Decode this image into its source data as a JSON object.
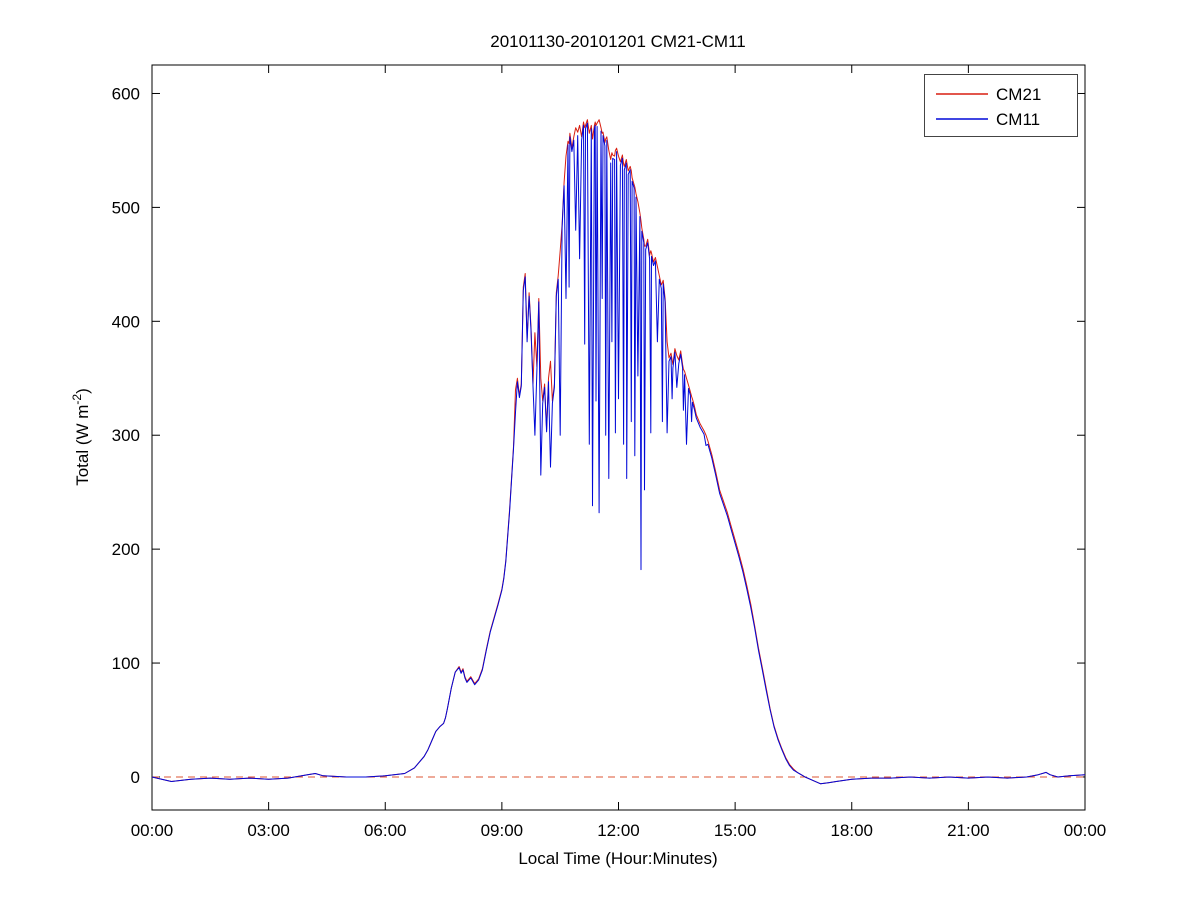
{
  "chart_data": {
    "type": "line",
    "title": "20101130-20101201 CM21-CM11",
    "xlabel": "Local Time (Hour:Minutes)",
    "ylabel": {
      "pre": "Total (W m",
      "sup": "-2",
      "post": ")"
    },
    "xlim": [
      0,
      24
    ],
    "ylim": [
      -29,
      625
    ],
    "grid": false,
    "x_ticks": [
      {
        "t": 0,
        "label": "00:00"
      },
      {
        "t": 3,
        "label": "03:00"
      },
      {
        "t": 6,
        "label": "06:00"
      },
      {
        "t": 9,
        "label": "09:00"
      },
      {
        "t": 12,
        "label": "12:00"
      },
      {
        "t": 15,
        "label": "15:00"
      },
      {
        "t": 18,
        "label": "18:00"
      },
      {
        "t": 21,
        "label": "21:00"
      },
      {
        "t": 24,
        "label": "00:00"
      }
    ],
    "y_ticks": [
      0,
      100,
      200,
      300,
      400,
      500,
      600
    ],
    "legend": {
      "position": "top-right"
    },
    "series": [
      {
        "name": "CM21",
        "color": "#d81e10",
        "column": 1
      },
      {
        "name": "CM11",
        "color": "#0008d8",
        "column": 2
      }
    ],
    "zero_line": {
      "y": 0,
      "color": "#dd5533",
      "dash": true
    },
    "points": [
      [
        0,
        0,
        0
      ],
      [
        0.25,
        -2,
        -2
      ],
      [
        0.5,
        -4,
        -4
      ],
      [
        0.75,
        -3,
        -3
      ],
      [
        1,
        -2,
        -2
      ],
      [
        1.5,
        -1,
        -1
      ],
      [
        2,
        -2,
        -2
      ],
      [
        2.5,
        -1,
        -1
      ],
      [
        3,
        -2,
        -2
      ],
      [
        3.5,
        -1,
        -1
      ],
      [
        4,
        2,
        2
      ],
      [
        4.2,
        3,
        3
      ],
      [
        4.4,
        1,
        1
      ],
      [
        5,
        0,
        0
      ],
      [
        5.5,
        0,
        0
      ],
      [
        6,
        1,
        1
      ],
      [
        6.5,
        3,
        3
      ],
      [
        6.75,
        8,
        8
      ],
      [
        7,
        18,
        18
      ],
      [
        7.1,
        24,
        24
      ],
      [
        7.2,
        32,
        32
      ],
      [
        7.3,
        40,
        40
      ],
      [
        7.4,
        44,
        44
      ],
      [
        7.5,
        47,
        47
      ],
      [
        7.55,
        52,
        52
      ],
      [
        7.6,
        60,
        60
      ],
      [
        7.7,
        78,
        78
      ],
      [
        7.8,
        92,
        92
      ],
      [
        7.9,
        97,
        96
      ],
      [
        7.95,
        92,
        91
      ],
      [
        8,
        95,
        94
      ],
      [
        8.05,
        88,
        87
      ],
      [
        8.1,
        84,
        83
      ],
      [
        8.2,
        88,
        87
      ],
      [
        8.3,
        82,
        81
      ],
      [
        8.4,
        86,
        85
      ],
      [
        8.5,
        95,
        94
      ],
      [
        8.6,
        112,
        111
      ],
      [
        8.7,
        128,
        127
      ],
      [
        8.8,
        140,
        139
      ],
      [
        8.9,
        152,
        151
      ],
      [
        9,
        165,
        164
      ],
      [
        9.05,
        175,
        174
      ],
      [
        9.1,
        190,
        189
      ],
      [
        9.2,
        235,
        233
      ],
      [
        9.3,
        290,
        288
      ],
      [
        9.35,
        340,
        320
      ],
      [
        9.4,
        350,
        347
      ],
      [
        9.45,
        335,
        333
      ],
      [
        9.5,
        345,
        343
      ],
      [
        9.55,
        430,
        427
      ],
      [
        9.6,
        442,
        439
      ],
      [
        9.65,
        385,
        382
      ],
      [
        9.7,
        425,
        422
      ],
      [
        9.75,
        395,
        392
      ],
      [
        9.8,
        345,
        343
      ],
      [
        9.85,
        390,
        300
      ],
      [
        9.9,
        360,
        357
      ],
      [
        9.95,
        420,
        417
      ],
      [
        10,
        350,
        265
      ],
      [
        10.05,
        330,
        328
      ],
      [
        10.1,
        345,
        342
      ],
      [
        10.15,
        305,
        303
      ],
      [
        10.2,
        350,
        347
      ],
      [
        10.25,
        365,
        272
      ],
      [
        10.3,
        330,
        328
      ],
      [
        10.35,
        345,
        342
      ],
      [
        10.4,
        425,
        422
      ],
      [
        10.45,
        440,
        437
      ],
      [
        10.5,
        462,
        300
      ],
      [
        10.55,
        485,
        482
      ],
      [
        10.6,
        522,
        519
      ],
      [
        10.65,
        545,
        420
      ],
      [
        10.7,
        558,
        555
      ],
      [
        10.73,
        556,
        430
      ],
      [
        10.75,
        565,
        562
      ],
      [
        10.8,
        552,
        549
      ],
      [
        10.85,
        562,
        559
      ],
      [
        10.9,
        570,
        480
      ],
      [
        10.95,
        566,
        563
      ],
      [
        11,
        572,
        455
      ],
      [
        11.05,
        562,
        559
      ],
      [
        11.1,
        575,
        572
      ],
      [
        11.13,
        570,
        380
      ],
      [
        11.15,
        572,
        569
      ],
      [
        11.2,
        577,
        574
      ],
      [
        11.25,
        565,
        292
      ],
      [
        11.3,
        572,
        569
      ],
      [
        11.33,
        560,
        238
      ],
      [
        11.38,
        572,
        569
      ],
      [
        11.4,
        575,
        572
      ],
      [
        11.42,
        572,
        330
      ],
      [
        11.45,
        574,
        571
      ],
      [
        11.5,
        577,
        232
      ],
      [
        11.55,
        570,
        567
      ],
      [
        11.58,
        565,
        420
      ],
      [
        11.6,
        566,
        563
      ],
      [
        11.65,
        557,
        554
      ],
      [
        11.67,
        560,
        300
      ],
      [
        11.7,
        562,
        559
      ],
      [
        11.75,
        550,
        262
      ],
      [
        11.8,
        542,
        539
      ],
      [
        11.83,
        548,
        382
      ],
      [
        11.85,
        546,
        543
      ],
      [
        11.9,
        545,
        542
      ],
      [
        11.92,
        550,
        302
      ],
      [
        11.95,
        552,
        549
      ],
      [
        12,
        545,
        332
      ],
      [
        12.05,
        540,
        537
      ],
      [
        12.1,
        546,
        543
      ],
      [
        12.13,
        538,
        292
      ],
      [
        12.15,
        536,
        533
      ],
      [
        12.2,
        542,
        539
      ],
      [
        12.21,
        540,
        262
      ],
      [
        12.25,
        532,
        529
      ],
      [
        12.3,
        536,
        533
      ],
      [
        12.33,
        532,
        312
      ],
      [
        12.35,
        526,
        523
      ],
      [
        12.4,
        520,
        517
      ],
      [
        12.42,
        518,
        282
      ],
      [
        12.45,
        512,
        509
      ],
      [
        12.5,
        505,
        352
      ],
      [
        12.55,
        495,
        492
      ],
      [
        12.58,
        488,
        182
      ],
      [
        12.6,
        482,
        479
      ],
      [
        12.65,
        472,
        469
      ],
      [
        12.67,
        466,
        252
      ],
      [
        12.7,
        466,
        463
      ],
      [
        12.75,
        472,
        469
      ],
      [
        12.8,
        458,
        455
      ],
      [
        12.83,
        462,
        302
      ],
      [
        12.85,
        460,
        457
      ],
      [
        12.9,
        452,
        449
      ],
      [
        12.95,
        456,
        453
      ],
      [
        13,
        448,
        382
      ],
      [
        13.05,
        440,
        437
      ],
      [
        13.1,
        432,
        429
      ],
      [
        13.13,
        434,
        312
      ],
      [
        13.15,
        436,
        433
      ],
      [
        13.2,
        420,
        417
      ],
      [
        13.25,
        382,
        302
      ],
      [
        13.3,
        368,
        365
      ],
      [
        13.35,
        372,
        369
      ],
      [
        13.38,
        366,
        332
      ],
      [
        13.4,
        362,
        359
      ],
      [
        13.45,
        376,
        373
      ],
      [
        13.5,
        370,
        342
      ],
      [
        13.55,
        366,
        363
      ],
      [
        13.6,
        374,
        371
      ],
      [
        13.65,
        362,
        359
      ],
      [
        13.67,
        358,
        322
      ],
      [
        13.7,
        356,
        353
      ],
      [
        13.75,
        350,
        292
      ],
      [
        13.8,
        344,
        341
      ],
      [
        13.85,
        338,
        335
      ],
      [
        13.88,
        334,
        312
      ],
      [
        13.9,
        332,
        329
      ],
      [
        13.95,
        326,
        323
      ],
      [
        14,
        318,
        315
      ],
      [
        14.1,
        310,
        307
      ],
      [
        14.2,
        304,
        301
      ],
      [
        14.25,
        300,
        291
      ],
      [
        14.3,
        295,
        292
      ],
      [
        14.4,
        283,
        280
      ],
      [
        14.5,
        268,
        265
      ],
      [
        14.6,
        252,
        249
      ],
      [
        14.7,
        242,
        239
      ],
      [
        14.8,
        232,
        229
      ],
      [
        14.9,
        220,
        217
      ],
      [
        15,
        208,
        205
      ],
      [
        15.1,
        196,
        193
      ],
      [
        15.2,
        183,
        180
      ],
      [
        15.3,
        168,
        165
      ],
      [
        15.4,
        152,
        149
      ],
      [
        15.5,
        133,
        131
      ],
      [
        15.6,
        113,
        111
      ],
      [
        15.7,
        96,
        94
      ],
      [
        15.8,
        78,
        76
      ],
      [
        15.9,
        60,
        59
      ],
      [
        16,
        45,
        44
      ],
      [
        16.1,
        34,
        33
      ],
      [
        16.2,
        25,
        24
      ],
      [
        16.3,
        17,
        16
      ],
      [
        16.4,
        11,
        10
      ],
      [
        16.5,
        7,
        6
      ],
      [
        16.6,
        4,
        4
      ],
      [
        16.7,
        2,
        2
      ],
      [
        16.8,
        0,
        0
      ],
      [
        17,
        -3,
        -3
      ],
      [
        17.2,
        -6,
        -6
      ],
      [
        17.4,
        -5,
        -5
      ],
      [
        17.6,
        -4,
        -4
      ],
      [
        17.8,
        -3,
        -3
      ],
      [
        18,
        -2,
        -2
      ],
      [
        18.5,
        -1,
        -1
      ],
      [
        19,
        -1,
        -1
      ],
      [
        19.5,
        0,
        0
      ],
      [
        20,
        -1,
        -1
      ],
      [
        20.5,
        0,
        0
      ],
      [
        21,
        -1,
        -1
      ],
      [
        21.5,
        0,
        0
      ],
      [
        22,
        -1,
        -1
      ],
      [
        22.5,
        0,
        0
      ],
      [
        22.8,
        2,
        2
      ],
      [
        23,
        4,
        4
      ],
      [
        23.1,
        2,
        2
      ],
      [
        23.3,
        0,
        0
      ],
      [
        23.6,
        1,
        1
      ],
      [
        24,
        2,
        2
      ]
    ]
  }
}
